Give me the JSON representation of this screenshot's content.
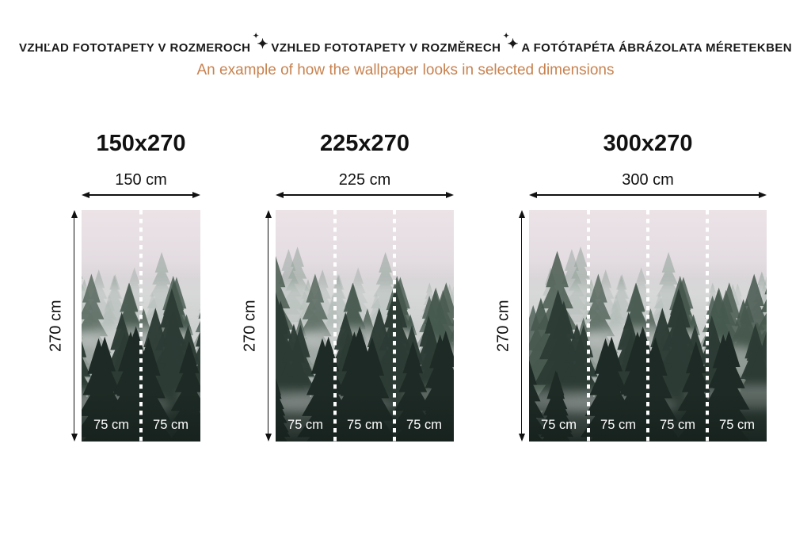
{
  "colors": {
    "ink": "#111111",
    "subtitle": "#c8824f",
    "panel_text": "#ffffff",
    "dash": "#ffffff"
  },
  "header": {
    "languages": [
      "VZHĽAD FOTOTAPETY V ROZMEROCH",
      "VZHLED FOTOTAPETY V ROZMĚRECH",
      "A FOTÓTAPÉTA ÁBRÁZOLATA MÉRETEKBEN"
    ],
    "separator_icon": "sparkle-icon",
    "subtitle": "An example of how the wallpaper looks in selected dimensions"
  },
  "figures": [
    {
      "title": "150x270",
      "width_label": "150 cm",
      "height_label": "270 cm",
      "width_cm": 150,
      "height_cm": 270,
      "panels": [
        "75 cm",
        "75 cm"
      ]
    },
    {
      "title": "225x270",
      "width_label": "225 cm",
      "height_label": "270 cm",
      "width_cm": 225,
      "height_cm": 270,
      "panels": [
        "75 cm",
        "75 cm",
        "75 cm"
      ]
    },
    {
      "title": "300x270",
      "width_label": "300 cm",
      "height_label": "270 cm",
      "width_cm": 300,
      "height_cm": 270,
      "panels": [
        "75 cm",
        "75 cm",
        "75 cm",
        "75 cm"
      ]
    }
  ],
  "image_theme": {
    "description": "misty-coniferous-forest-photo",
    "sky_top": "#ece3e7",
    "sky_mid": "#e3dce1",
    "fog": "#dadcdc",
    "trees_far": "#8d9e96",
    "trees_mid": "#47594f",
    "trees_near": "#2c3b35",
    "trees_front": "#1e2a25",
    "bottom_shade": "#16211d"
  }
}
